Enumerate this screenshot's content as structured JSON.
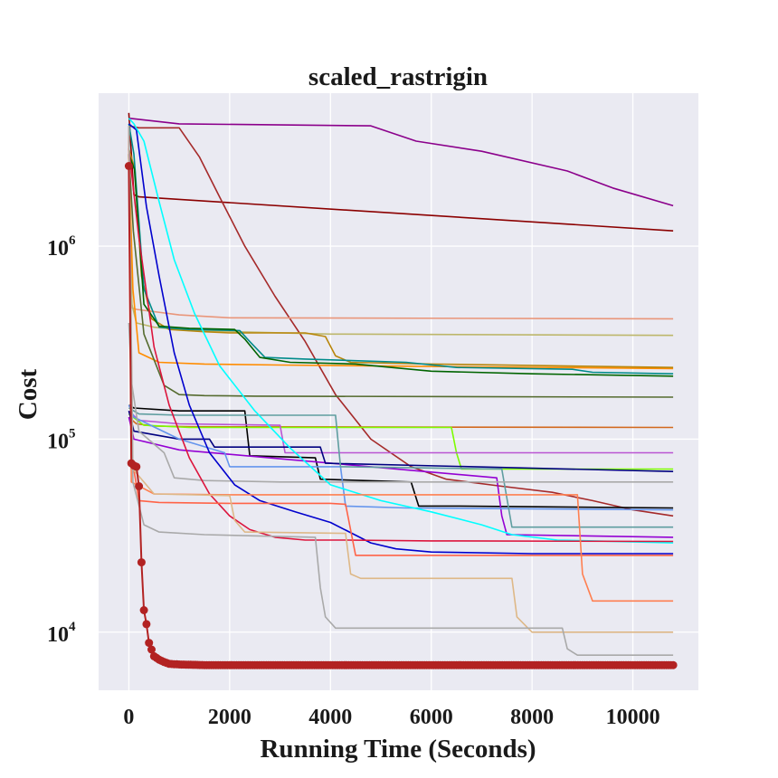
{
  "chart_data": {
    "type": "line",
    "title": "scaled_rastrigin",
    "xlabel": "Running Time (Seconds)",
    "ylabel": "Cost",
    "yscale": "log",
    "xlim": [
      -600,
      11300
    ],
    "ylim": [
      5000,
      6200000
    ],
    "grid": true,
    "background": "#eaeaf2",
    "x_ticks": [
      0,
      2000,
      4000,
      6000,
      8000,
      10000
    ],
    "x_tick_labels": [
      "0",
      "2000",
      "4000",
      "6000",
      "8000",
      "10000"
    ],
    "y_ticks": [
      {
        "value": 10000,
        "base": "10",
        "exp": "4"
      },
      {
        "value": 100000,
        "base": "10",
        "exp": "5"
      },
      {
        "value": 1000000,
        "base": "10",
        "exp": "6"
      }
    ],
    "series": [
      {
        "name": "darkmagenta",
        "color": "#8b008b",
        "x": [
          0,
          1000,
          4800,
          5700,
          7000,
          8700,
          9600,
          10800
        ],
        "y": [
          4600000,
          4300000,
          4200000,
          3500000,
          3100000,
          2450000,
          2000000,
          1620000
        ]
      },
      {
        "name": "darkred",
        "color": "#8b0000",
        "x": [
          0,
          100,
          200,
          10800
        ],
        "y": [
          4900000,
          1850000,
          1800000,
          1200000
        ]
      },
      {
        "name": "brown",
        "color": "#a52a2a",
        "x": [
          0,
          200,
          1000,
          1400,
          1800,
          2300,
          2900,
          3500,
          4100,
          4800,
          5600,
          6300,
          7400,
          8400,
          9200,
          10000,
          10800
        ],
        "y": [
          4200000,
          4100000,
          4100000,
          2900000,
          1800000,
          1000000,
          550000,
          320000,
          170000,
          100000,
          72000,
          62000,
          57000,
          53000,
          48000,
          43000,
          40000
        ]
      },
      {
        "name": "darksalmon",
        "color": "#e9967a",
        "x": [
          0,
          50,
          150,
          1000,
          2000,
          10800
        ],
        "y": [
          4000000,
          480000,
          470000,
          440000,
          425000,
          420000
        ]
      },
      {
        "name": "darkkhaki",
        "color": "#bdb76b",
        "x": [
          0,
          60,
          150,
          500,
          1200,
          4000,
          10800
        ],
        "y": [
          3500000,
          500000,
          400000,
          380000,
          365000,
          350000,
          345000
        ]
      },
      {
        "name": "darkorange",
        "color": "#ff8c00",
        "x": [
          0,
          80,
          200,
          600,
          1500,
          3000,
          6000,
          10800
        ],
        "y": [
          3000000,
          600000,
          280000,
          250000,
          245000,
          242000,
          238000,
          232000
        ]
      },
      {
        "name": "darkgoldenrod",
        "color": "#b8860b",
        "x": [
          0,
          120,
          250,
          450,
          800,
          1500,
          2000,
          2600,
          3500,
          3900,
          4100,
          4400,
          6000,
          10800
        ],
        "y": [
          3200000,
          2500000,
          700000,
          420000,
          370000,
          360000,
          355000,
          355000,
          355000,
          340000,
          270000,
          250000,
          245000,
          235000
        ]
      },
      {
        "name": "darkcyan",
        "color": "#008b8b",
        "x": [
          0,
          100,
          300,
          600,
          1200,
          2200,
          2400,
          2700,
          3500,
          5500,
          6500,
          8800,
          9200,
          10800
        ],
        "y": [
          4300000,
          3000000,
          600000,
          380000,
          370000,
          365000,
          320000,
          265000,
          260000,
          250000,
          235000,
          230000,
          222000,
          218000
        ]
      },
      {
        "name": "darkgreen",
        "color": "#006400",
        "x": [
          0,
          110,
          300,
          600,
          1200,
          2100,
          2300,
          2600,
          3200,
          4500,
          6000,
          8000,
          10800
        ],
        "y": [
          3000000,
          2500000,
          500000,
          385000,
          375000,
          370000,
          330000,
          265000,
          250000,
          245000,
          225000,
          218000,
          212000
        ]
      },
      {
        "name": "darkolivegreen",
        "color": "#556b2f",
        "x": [
          0,
          90,
          300,
          700,
          1000,
          1500,
          2500,
          10800
        ],
        "y": [
          3000000,
          1200000,
          350000,
          190000,
          170000,
          168000,
          167000,
          165000
        ]
      },
      {
        "name": "chocolate",
        "color": "#d2691e",
        "x": [
          0,
          150,
          500,
          1200,
          10800
        ],
        "y": [
          130000,
          120000,
          117000,
          116000,
          115000
        ]
      },
      {
        "name": "black",
        "color": "#000000",
        "x": [
          0,
          100,
          1000,
          2300,
          2400,
          3700,
          3800,
          5600,
          5750,
          6500,
          10800
        ],
        "y": [
          150000,
          145000,
          140000,
          140000,
          82000,
          80000,
          62000,
          60000,
          45000,
          45000,
          44000
        ]
      },
      {
        "name": "lawngreen",
        "color": "#7cfc00",
        "x": [
          0,
          300,
          1200,
          6400,
          6500,
          6600,
          10800
        ],
        "y": [
          135000,
          118000,
          115000,
          115000,
          85000,
          70000,
          70000
        ]
      },
      {
        "name": "mediumorchid",
        "color": "#ba55d3",
        "x": [
          0,
          200,
          1000,
          3000,
          3100,
          10800
        ],
        "y": [
          140000,
          125000,
          120000,
          118000,
          85000,
          85000
        ]
      },
      {
        "name": "darkviolet",
        "color": "#9400d3",
        "x": [
          0,
          100,
          1000,
          7300,
          7400,
          7500,
          10800
        ],
        "y": [
          130000,
          100000,
          88000,
          63000,
          40000,
          32000,
          31000
        ]
      },
      {
        "name": "navy",
        "color": "#000080",
        "x": [
          0,
          100,
          1000,
          1600,
          1700,
          3800,
          3900,
          10800
        ],
        "y": [
          140000,
          110000,
          100000,
          100000,
          91000,
          91000,
          75000,
          68000
        ]
      },
      {
        "name": "cornflowerblue",
        "color": "#6495ed",
        "x": [
          0,
          100,
          1000,
          1900,
          2000,
          4200,
          4300,
          5500,
          10800
        ],
        "y": [
          150000,
          130000,
          100000,
          85000,
          72000,
          72000,
          45000,
          44000,
          43000
        ]
      },
      {
        "name": "cadetblue",
        "color": "#5f9ea0",
        "x": [
          0,
          200,
          1000,
          4100,
          4200,
          7400,
          7600,
          10800
        ],
        "y": [
          145000,
          135000,
          133000,
          133000,
          72000,
          70000,
          35000,
          35000
        ]
      },
      {
        "name": "darkgray",
        "color": "#a9a9a9",
        "x": [
          0,
          50,
          200,
          700,
          900,
          1500,
          3000,
          10800
        ],
        "y": [
          400000,
          200000,
          110000,
          85000,
          63000,
          61000,
          60000,
          60000
        ]
      },
      {
        "name": "mediumblue",
        "color": "#0000cd",
        "x": [
          0,
          150,
          350,
          600,
          900,
          1200,
          1600,
          2100,
          2600,
          3300,
          4000,
          4800,
          5300,
          6000,
          8000,
          10800
        ],
        "y": [
          4300000,
          4000000,
          1600000,
          700000,
          280000,
          150000,
          85000,
          58000,
          48000,
          42000,
          37000,
          29000,
          27000,
          26000,
          25500,
          25500
        ]
      },
      {
        "name": "cyan",
        "color": "#00ffff",
        "x": [
          0,
          100,
          300,
          600,
          900,
          1300,
          1800,
          2500,
          3200,
          4000,
          5000,
          6000,
          7000,
          7600,
          8500,
          10800
        ],
        "y": [
          4600000,
          4300000,
          3500000,
          1700000,
          850000,
          450000,
          240000,
          140000,
          90000,
          58000,
          48000,
          42000,
          36000,
          32000,
          30000,
          29000
        ]
      },
      {
        "name": "crimson",
        "color": "#dc143c",
        "x": [
          0,
          200,
          500,
          800,
          1200,
          1600,
          2000,
          2400,
          2900,
          3500,
          4300,
          6000,
          10800
        ],
        "y": [
          3200000,
          1100000,
          300000,
          150000,
          80000,
          52000,
          40000,
          34000,
          31000,
          30000,
          30000,
          29700,
          29500
        ]
      },
      {
        "name": "tomato",
        "color": "#ff6347",
        "x": [
          0,
          60,
          200,
          600,
          2000,
          4000,
          4300,
          4500,
          10800
        ],
        "y": [
          4200000,
          80000,
          48000,
          47000,
          46500,
          46500,
          46000,
          25000,
          25000
        ]
      },
      {
        "name": "coral",
        "color": "#ff7f50",
        "x": [
          0,
          50,
          500,
          2000,
          8900,
          9000,
          9200,
          10800
        ],
        "y": [
          4000000,
          60000,
          52000,
          51500,
          51500,
          20000,
          14500,
          14500
        ]
      },
      {
        "name": "burlywood",
        "color": "#deb887",
        "x": [
          0,
          80,
          500,
          2000,
          2100,
          2300,
          4300,
          4400,
          4600,
          7600,
          7700,
          8000,
          10800
        ],
        "y": [
          4200000,
          70000,
          52000,
          51000,
          38000,
          33000,
          32500,
          20000,
          19000,
          19000,
          12000,
          10000,
          10000
        ]
      },
      {
        "name": "silver",
        "color": "#a9a9a9",
        "x": [
          0,
          80,
          300,
          600,
          1500,
          3700,
          3800,
          3900,
          4100,
          8600,
          8700,
          8900,
          10800
        ],
        "y": [
          4200000,
          60000,
          36000,
          33000,
          32000,
          31000,
          17000,
          12000,
          10500,
          10500,
          8200,
          7600,
          7600
        ]
      },
      {
        "name": "firebrick-markers",
        "color": "#b22222",
        "markers": true,
        "x": [
          0,
          50,
          100,
          150,
          200,
          250,
          300,
          350,
          400,
          500,
          600,
          700,
          800,
          1000,
          1500,
          2000,
          3000,
          4000,
          5000,
          6000,
          7000,
          8000,
          9000,
          10000,
          10800
        ],
        "y": [
          2600000,
          75000,
          73000,
          72000,
          57000,
          23000,
          13000,
          11000,
          8800,
          7500,
          7200,
          7000,
          6850,
          6800,
          6750,
          6750,
          6750,
          6750,
          6750,
          6750,
          6750,
          6750,
          6750,
          6750,
          6750
        ]
      }
    ]
  }
}
